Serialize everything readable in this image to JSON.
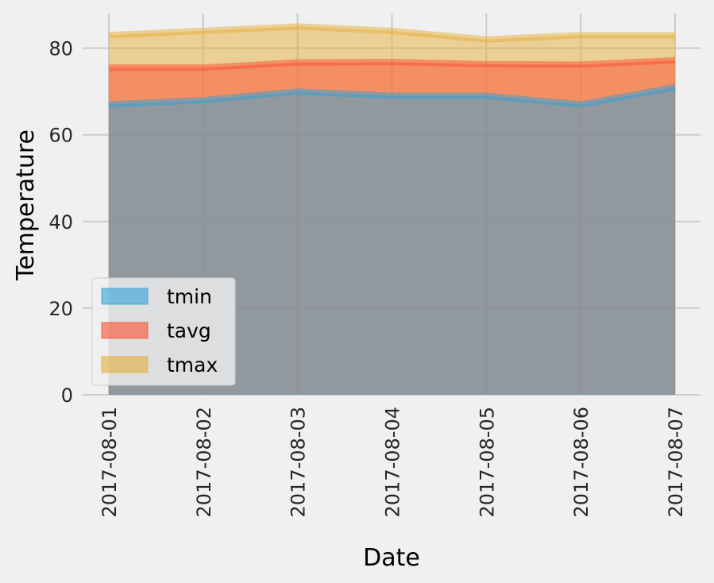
{
  "chart_data": {
    "type": "area",
    "x": [
      "2017-08-01",
      "2017-08-02",
      "2017-08-03",
      "2017-08-04",
      "2017-08-05",
      "2017-08-06",
      "2017-08-07"
    ],
    "series": [
      {
        "name": "tmin",
        "values": [
          67.0,
          68.0,
          70.0,
          69.0,
          69.0,
          67.0,
          71.0
        ],
        "color": "#30a2da"
      },
      {
        "name": "tavg",
        "values": [
          75.5,
          75.5,
          76.7,
          76.8,
          76.3,
          76.2,
          77.2
        ],
        "color": "#fc4f30"
      },
      {
        "name": "tmax",
        "values": [
          83.0,
          84.0,
          85.0,
          84.0,
          82.0,
          83.0,
          83.0
        ],
        "color": "#e5ae38"
      }
    ],
    "xlabel": "Date",
    "ylabel": "Temperature",
    "ylim": [
      0,
      88
    ],
    "yticks": [
      0,
      20,
      40,
      60,
      80
    ],
    "grid": true,
    "legend_position": "lower-left",
    "style": "fivethirtyeight",
    "background": "#f0f0f0",
    "grid_color": "#cbcbcb"
  }
}
